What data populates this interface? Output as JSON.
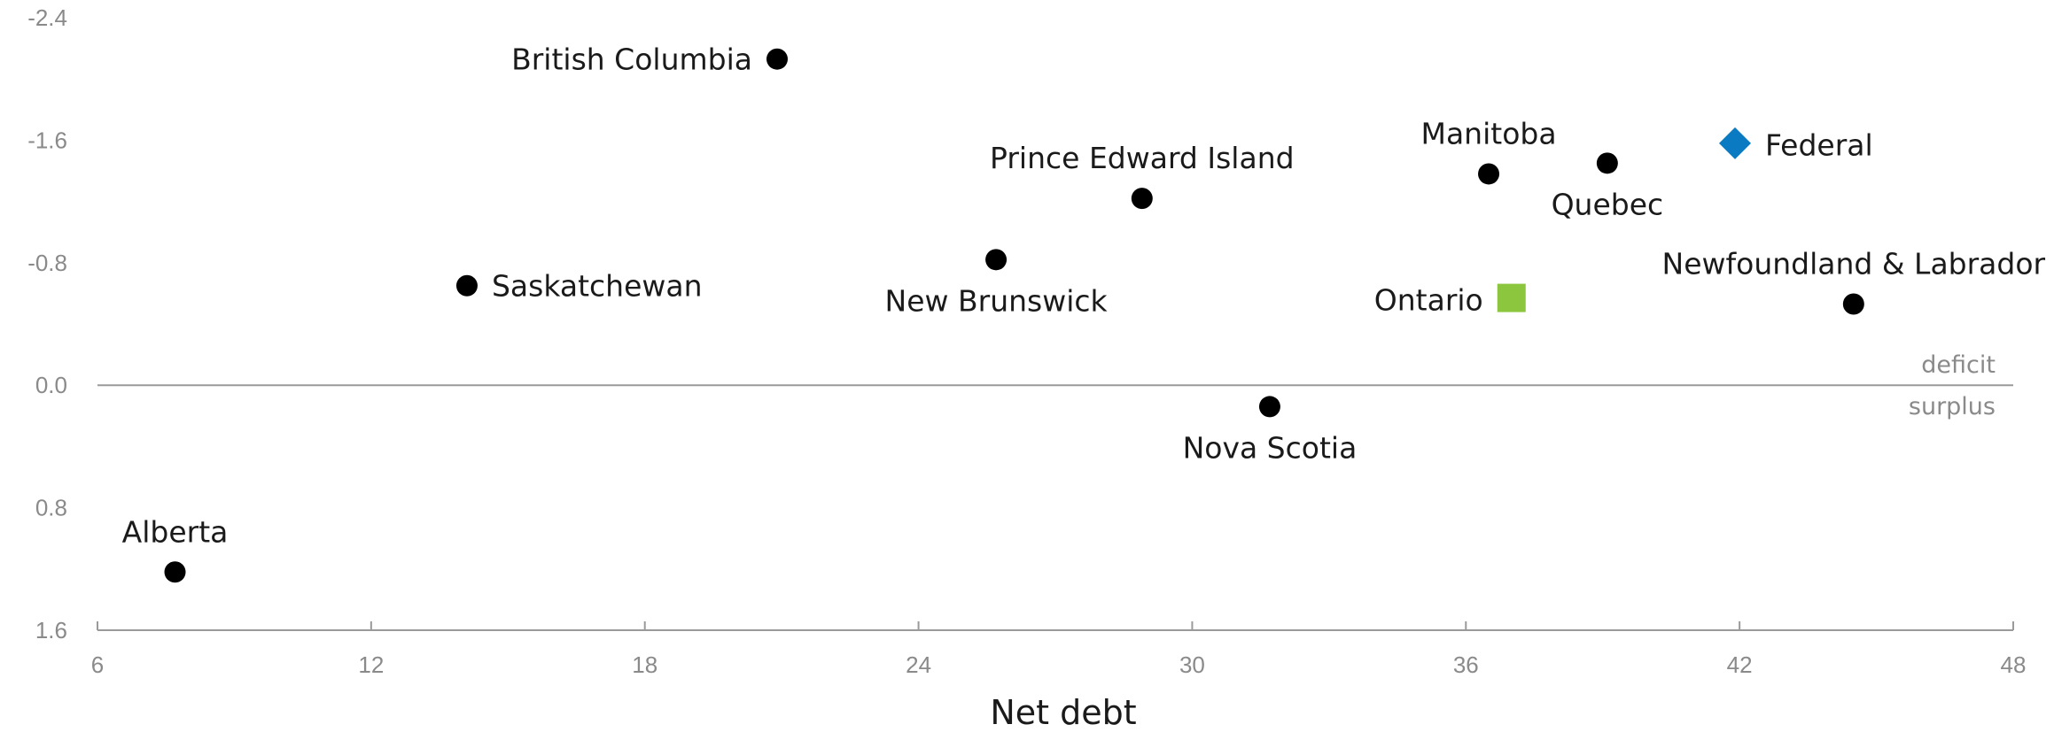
{
  "chart_data": {
    "type": "scatter",
    "title": "",
    "xlabel": "Net debt",
    "ylabel": "",
    "xlim": [
      6,
      48
    ],
    "ylim": [
      -2.4,
      1.6
    ],
    "y_axis_inverted": true,
    "x_ticks": [
      "6",
      "12",
      "18",
      "24",
      "30",
      "36",
      "42",
      "48"
    ],
    "y_ticks": [
      "-2.4",
      "-1.6",
      "-0.8",
      "0.0",
      "0.8",
      "1.6"
    ],
    "reference_line": {
      "y": 0,
      "label_above": "deficit",
      "label_below": "surplus"
    },
    "grid": false,
    "colors": {
      "default": "#000000",
      "Ontario": "#8cc63f",
      "Federal": "#0a7bc2",
      "axis": "#9a9a9a",
      "tick_text": "#8a8a8a"
    },
    "points": [
      {
        "label": "British Columbia",
        "x": 20.9,
        "y": -2.13,
        "marker": "circle",
        "color": "#000000",
        "label_pos": "left"
      },
      {
        "label": "Saskatchewan",
        "x": 14.1,
        "y": -0.65,
        "marker": "circle",
        "color": "#000000",
        "label_pos": "right"
      },
      {
        "label": "New Brunswick",
        "x": 25.7,
        "y": -0.82,
        "marker": "circle",
        "color": "#000000",
        "label_pos": "below"
      },
      {
        "label": "Prince Edward Island",
        "x": 28.9,
        "y": -1.22,
        "marker": "circle",
        "color": "#000000",
        "label_pos": "above"
      },
      {
        "label": "Manitoba",
        "x": 36.5,
        "y": -1.38,
        "marker": "circle",
        "color": "#000000",
        "label_pos": "above"
      },
      {
        "label": "Quebec",
        "x": 39.1,
        "y": -1.45,
        "marker": "circle",
        "color": "#000000",
        "label_pos": "below"
      },
      {
        "label": "Federal",
        "x": 41.9,
        "y": -1.58,
        "marker": "diamond",
        "color": "#0a7bc2",
        "label_pos": "right"
      },
      {
        "label": "Ontario",
        "x": 37.0,
        "y": -0.57,
        "marker": "square",
        "color": "#8cc63f",
        "label_pos": "left"
      },
      {
        "label": "Newfoundland & Labrador",
        "x": 44.5,
        "y": -0.53,
        "marker": "circle",
        "color": "#000000",
        "label_pos": "above"
      },
      {
        "label": "Nova Scotia",
        "x": 31.7,
        "y": 0.14,
        "marker": "circle",
        "color": "#000000",
        "label_pos": "below"
      },
      {
        "label": "Alberta",
        "x": 7.7,
        "y": 1.22,
        "marker": "circle",
        "color": "#000000",
        "label_pos": "above"
      }
    ]
  }
}
